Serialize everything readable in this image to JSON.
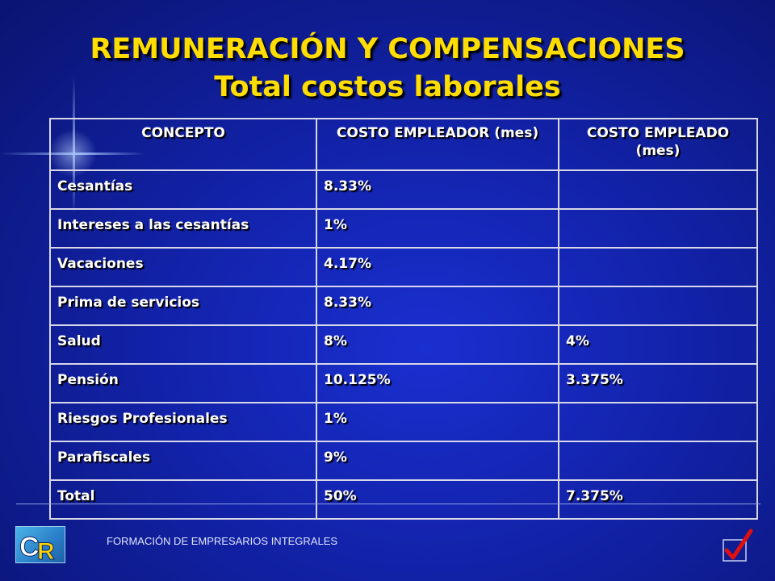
{
  "title": "REMUNERACIÓN Y COMPENSACIONES",
  "subtitle": "Total costos laborales",
  "table": {
    "headers": [
      "CONCEPTO",
      "COSTO EMPLEADOR (mes)",
      "COSTO EMPLEADO (mes)"
    ],
    "rows": [
      [
        "Cesantías",
        "8.33%",
        ""
      ],
      [
        "Intereses a las cesantías",
        "1%",
        ""
      ],
      [
        "Vacaciones",
        "4.17%",
        ""
      ],
      [
        "Prima de servicios",
        "8.33%",
        ""
      ],
      [
        "Salud",
        "8%",
        "4%"
      ],
      [
        "Pensión",
        "10.125%",
        "3.375%"
      ],
      [
        "Riesgos Profesionales",
        "1%",
        ""
      ],
      [
        "Parafiscales",
        "9%",
        ""
      ],
      [
        "Total",
        "50%",
        "7.375%"
      ]
    ]
  },
  "footer": {
    "text": "FORMACIÓN DE EMPRESARIOS INTEGRALES",
    "logo_text": "CR",
    "logo_icon": "cr-logo-icon",
    "check_icon": "checkmark-icon"
  },
  "colors": {
    "background": "#1222a8",
    "title": "#ffdd00",
    "text": "#ffffff",
    "check": "#e01010"
  }
}
